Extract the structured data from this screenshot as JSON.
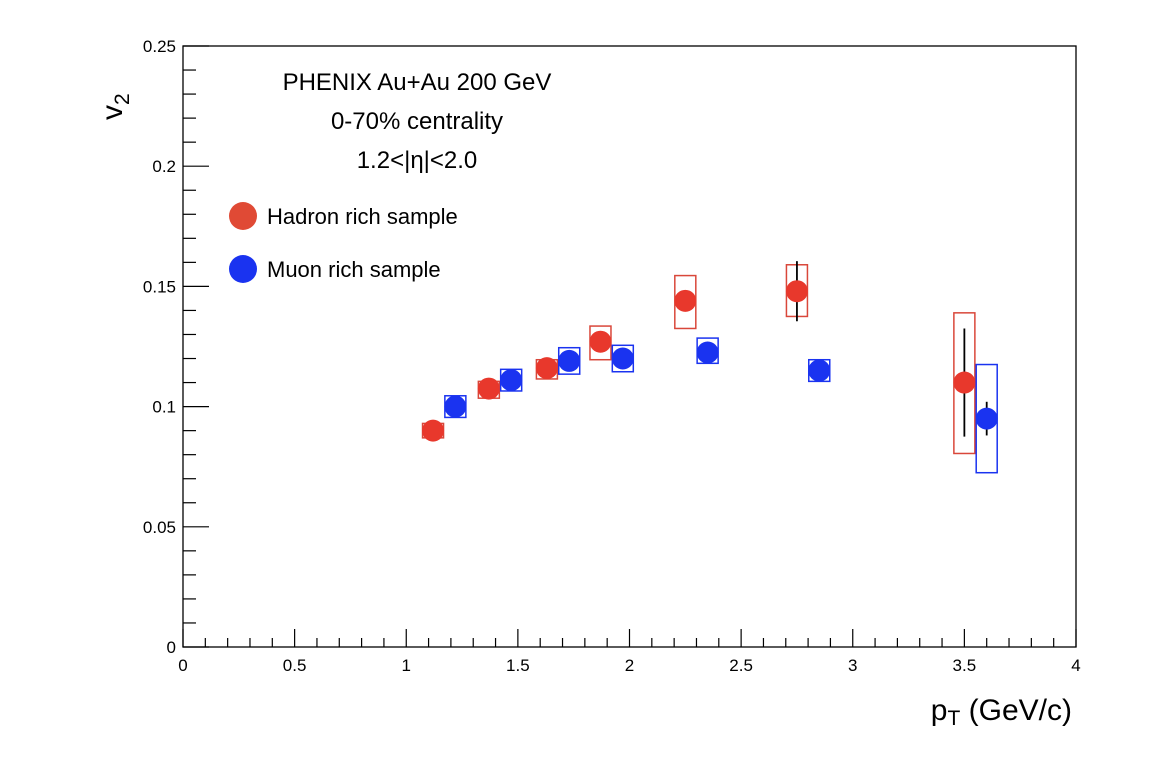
{
  "chart_data": {
    "type": "scatter",
    "title": "",
    "xlabel_main": "p",
    "xlabel_sub": "T",
    "xlabel_rest": " (GeV/c)",
    "ylabel_main": "v",
    "ylabel_sub": "2",
    "xlim": [
      0,
      4
    ],
    "ylim": [
      0,
      0.25
    ],
    "x_ticks": [
      "0",
      "0.5",
      "1",
      "1.5",
      "2",
      "2.5",
      "3",
      "3.5",
      "4"
    ],
    "x_tick_values": [
      0,
      0.5,
      1,
      1.5,
      2,
      2.5,
      3,
      3.5,
      4
    ],
    "y_ticks": [
      "0",
      "0.05",
      "0.1",
      "0.15",
      "0.2",
      "0.25"
    ],
    "y_tick_values": [
      0,
      0.05,
      0.1,
      0.15,
      0.2,
      0.25
    ],
    "annotations": [
      "PHENIX Au+Au 200 GeV",
      "0-70% centrality",
      "1.2<|η|<2.0"
    ],
    "legend_position": "top-left",
    "grid": false,
    "series": [
      {
        "name": "Hadron rich sample",
        "color": "#e8382c",
        "points": [
          {
            "x": 1.12,
            "y": 0.09,
            "stat_err": 0.002,
            "sys_lo": 0.087,
            "sys_hi": 0.093
          },
          {
            "x": 1.37,
            "y": 0.1075,
            "stat_err": 0.002,
            "sys_lo": 0.1035,
            "sys_hi": 0.1105
          },
          {
            "x": 1.63,
            "y": 0.116,
            "stat_err": 0.002,
            "sys_lo": 0.1115,
            "sys_hi": 0.1195
          },
          {
            "x": 1.87,
            "y": 0.127,
            "stat_err": 0.003,
            "sys_lo": 0.1195,
            "sys_hi": 0.1335
          },
          {
            "x": 2.25,
            "y": 0.144,
            "stat_err": 0.004,
            "sys_lo": 0.1325,
            "sys_hi": 0.1545
          },
          {
            "x": 2.75,
            "y": 0.148,
            "stat_err": 0.0125,
            "sys_lo": 0.1375,
            "sys_hi": 0.159
          },
          {
            "x": 3.5,
            "y": 0.11,
            "stat_err": 0.0225,
            "sys_lo": 0.0805,
            "sys_hi": 0.139
          }
        ]
      },
      {
        "name": "Muon rich sample",
        "color": "#1a33f0",
        "points": [
          {
            "x": 1.22,
            "y": 0.1,
            "stat_err": 0.002,
            "sys_lo": 0.0955,
            "sys_hi": 0.1045
          },
          {
            "x": 1.47,
            "y": 0.111,
            "stat_err": 0.002,
            "sys_lo": 0.1065,
            "sys_hi": 0.1155
          },
          {
            "x": 1.73,
            "y": 0.119,
            "stat_err": 0.002,
            "sys_lo": 0.1135,
            "sys_hi": 0.1245
          },
          {
            "x": 1.97,
            "y": 0.12,
            "stat_err": 0.002,
            "sys_lo": 0.1145,
            "sys_hi": 0.1255
          },
          {
            "x": 2.35,
            "y": 0.1225,
            "stat_err": 0.002,
            "sys_lo": 0.118,
            "sys_hi": 0.1285
          },
          {
            "x": 2.85,
            "y": 0.115,
            "stat_err": 0.002,
            "sys_lo": 0.1105,
            "sys_hi": 0.1195
          },
          {
            "x": 3.6,
            "y": 0.095,
            "stat_err": 0.007,
            "sys_lo": 0.0725,
            "sys_hi": 0.1175
          }
        ]
      }
    ]
  }
}
